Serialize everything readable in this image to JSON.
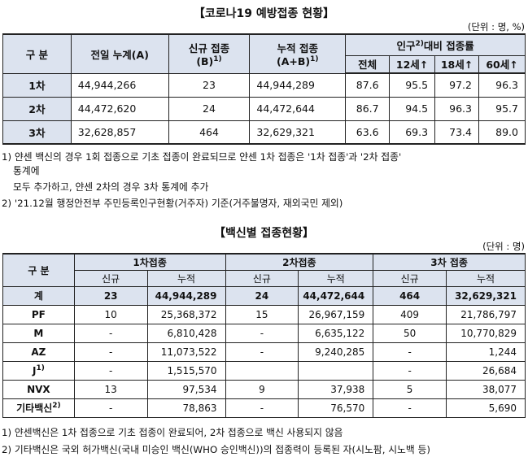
{
  "title1": "【코로나19 예방접종 현황】",
  "unit1": "(단위 : 명, %)",
  "t1": {
    "h_gubun": "구 분",
    "h_prev": "전일 누계(A)",
    "h_new": "신규 접종",
    "h_new2": "(B)",
    "h_new_sup": "1)",
    "h_cum": "누적 접종",
    "h_cum2": "(A+B)",
    "h_cum_sup": "1)",
    "h_pop_a": "인구",
    "h_pop_sup": "2)",
    "h_pop_b": "대비 접종률",
    "h_all": "전체",
    "h_12": "12세↑",
    "h_18": "18세↑",
    "h_60": "60세↑",
    "rows": [
      {
        "label": "1차",
        "prev": "44,944,266",
        "new": "23",
        "cum": "44,944,289",
        "all": "87.6",
        "a12": "95.5",
        "a18": "97.2",
        "a60": "96.3"
      },
      {
        "label": "2차",
        "prev": "44,472,620",
        "new": "24",
        "cum": "44,472,644",
        "all": "86.7",
        "a12": "94.5",
        "a18": "96.3",
        "a60": "95.7"
      },
      {
        "label": "3차",
        "prev": "32,628,857",
        "new": "464",
        "cum": "32,629,321",
        "all": "63.6",
        "a12": "69.3",
        "a18": "73.4",
        "a60": "89.0"
      }
    ]
  },
  "notes1": {
    "n1": "1) 얀센 백신의 경우 1회 접종으로 기초 접종이 완료되므로 얀센 1차 접종은 '1차 접종'과 '2차 접종'",
    "n1b": "통계에",
    "n1c": "모두 추가하고, 얀센 2차의 경우 3차 통계에 추가",
    "n2": "2) '21.12월 행정안전부 주민등록인구현황(거주자) 기준(거주불명자, 재외국민 제외)"
  },
  "title2": "【백신별 접종현황】",
  "unit2": "(단위 : 명)",
  "t2": {
    "h_gubun": "구 분",
    "h_d1": "1차접종",
    "h_d2": "2차접종",
    "h_d3": "3차 접종",
    "h_new": "신규",
    "h_cum": "누적",
    "rows": [
      {
        "label": "계",
        "sup": "",
        "n1": "23",
        "c1": "44,944,289",
        "n2": "24",
        "c2": "44,472,644",
        "n3": "464",
        "c3": "32,629,321"
      },
      {
        "label": "PF",
        "sup": "",
        "n1": "10",
        "c1": "25,368,372",
        "n2": "15",
        "c2": "26,967,159",
        "n3": "409",
        "c3": "21,786,797"
      },
      {
        "label": "M",
        "sup": "",
        "n1": "-",
        "c1": "6,810,428",
        "n2": "-",
        "c2": "6,635,122",
        "n3": "50",
        "c3": "10,770,829"
      },
      {
        "label": "AZ",
        "sup": "",
        "n1": "-",
        "c1": "11,073,522",
        "n2": "-",
        "c2": "9,240,285",
        "n3": "-",
        "c3": "1,244"
      },
      {
        "label": "J",
        "sup": "1)",
        "n1": "-",
        "c1": "1,515,570",
        "n2": "",
        "c2": "",
        "n3": "-",
        "c3": "26,684"
      },
      {
        "label": "NVX",
        "sup": "",
        "n1": "13",
        "c1": "97,534",
        "n2": "9",
        "c2": "37,938",
        "n3": "5",
        "c3": "38,077"
      },
      {
        "label": "기타백신",
        "sup": "2)",
        "n1": "-",
        "c1": "78,863",
        "n2": "-",
        "c2": "76,570",
        "n3": "-",
        "c3": "5,690"
      }
    ]
  },
  "notes2": {
    "n1": "1) 얀센백신은 1차 접종으로 기초 접종이 완료되어, 2차 접종으로 백신 사용되지 않음",
    "n2": "2) 기타백신은 국외 허가백신(국내 미승인 백신(WHO 승인백신))의 접종력이 등록된 자(시노팜, 시노백 등)"
  }
}
